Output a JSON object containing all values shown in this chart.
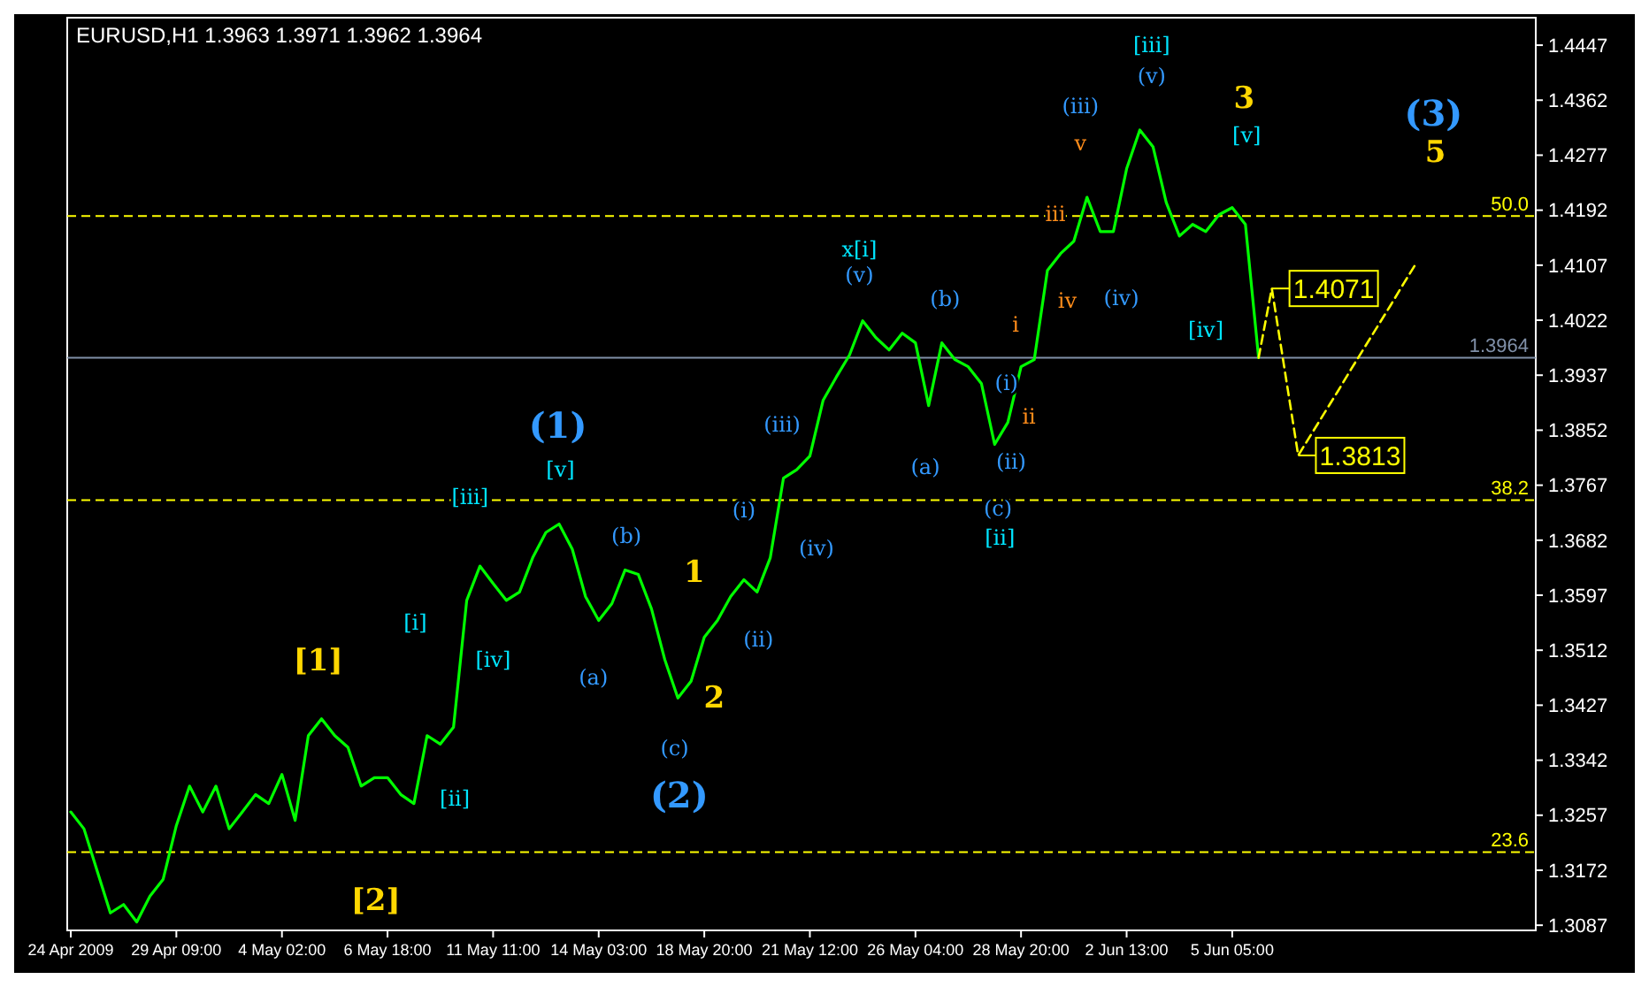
{
  "chart_data": {
    "type": "line",
    "title": "EURUSD,H1  1.3963 1.3971 1.3962 1.3964",
    "categories": [
      "24 Apr 2009",
      null,
      null,
      null,
      null,
      null,
      null,
      null,
      "29 Apr 09:00",
      null,
      null,
      null,
      null,
      null,
      null,
      null,
      "4 May 02:00",
      null,
      null,
      null,
      null,
      null,
      null,
      null,
      "6 May 18:00",
      null,
      null,
      null,
      null,
      null,
      null,
      null,
      "11 May 11:00",
      null,
      null,
      null,
      null,
      null,
      null,
      null,
      "14 May 03:00",
      null,
      null,
      null,
      null,
      null,
      null,
      null,
      "18 May 20:00",
      null,
      null,
      null,
      null,
      null,
      null,
      null,
      "21 May 12:00",
      null,
      null,
      null,
      null,
      null,
      null,
      null,
      "26 May 04:00",
      null,
      null,
      null,
      null,
      null,
      null,
      null,
      "28 May 20:00",
      null,
      null,
      null,
      null,
      null,
      null,
      null,
      "2 Jun 13:00",
      null,
      null,
      null,
      null,
      null,
      null,
      null,
      "5 Jun 05:00",
      null,
      null,
      null,
      null,
      null,
      null,
      null,
      null,
      null,
      null,
      null,
      null,
      null,
      null,
      null,
      null,
      null,
      null,
      null,
      null,
      null,
      null,
      null
    ],
    "series": [
      {
        "color": "#00ff00",
        "values": [
          1.3262,
          1.3236,
          1.3171,
          1.3106,
          1.3119,
          1.3092,
          1.3132,
          1.3158,
          1.3241,
          1.3302,
          1.3262,
          1.3302,
          1.3236,
          1.3262,
          1.3289,
          1.3275,
          1.332,
          1.3249,
          1.338,
          1.3406,
          1.338,
          1.3362,
          1.3302,
          1.3315,
          1.3315,
          1.3289,
          1.3275,
          1.338,
          1.3367,
          1.3393,
          1.3589,
          1.3642,
          1.3615,
          1.3589,
          1.3602,
          1.3655,
          1.3694,
          1.3707,
          1.3668,
          1.3595,
          1.3558,
          1.3584,
          1.3636,
          1.3629,
          1.3576,
          1.3498,
          1.3438,
          1.3464,
          1.3532,
          1.3558,
          1.3595,
          1.3621,
          1.3602,
          1.3655,
          1.3778,
          1.3791,
          1.3812,
          1.3898,
          1.3934,
          1.3968,
          1.4021,
          1.3995,
          1.3976,
          1.4002,
          1.3987,
          1.389,
          1.3987,
          1.3961,
          1.395,
          1.3924,
          1.383,
          1.3864,
          1.395,
          1.3961,
          1.4099,
          1.4125,
          1.4144,
          1.4212,
          1.4159,
          1.4159,
          1.4256,
          1.4316,
          1.429,
          1.4204,
          1.4152,
          1.417,
          1.4159,
          1.4185,
          1.4196,
          1.417,
          1.3964,
          null,
          null,
          null,
          null,
          null,
          null,
          null,
          null,
          null,
          null,
          null,
          null,
          null,
          null,
          null,
          null,
          null,
          null,
          null,
          null,
          null
        ]
      },
      {
        "color": "#ffff00",
        "line_style": "dashed",
        "values": [
          null,
          null,
          null,
          null,
          null,
          null,
          null,
          null,
          null,
          null,
          null,
          null,
          null,
          null,
          null,
          null,
          null,
          null,
          null,
          null,
          null,
          null,
          null,
          null,
          null,
          null,
          null,
          null,
          null,
          null,
          null,
          null,
          null,
          null,
          null,
          null,
          null,
          null,
          null,
          null,
          null,
          null,
          null,
          null,
          null,
          null,
          null,
          null,
          null,
          null,
          null,
          null,
          null,
          null,
          null,
          null,
          null,
          null,
          null,
          null,
          null,
          null,
          null,
          null,
          null,
          null,
          null,
          null,
          null,
          null,
          null,
          null,
          null,
          null,
          null,
          null,
          null,
          null,
          null,
          null,
          null,
          null,
          null,
          null,
          null,
          null,
          null,
          null,
          null,
          null,
          1.3964,
          1.4071,
          1.3942,
          1.3813,
          1.3846,
          1.3879,
          1.3912,
          1.3946,
          1.3979,
          1.4012,
          1.4045,
          1.4079,
          1.4112,
          null,
          null,
          null,
          null,
          null,
          null,
          null,
          null,
          null
        ],
        "value_labels": [
          null,
          null,
          null,
          null,
          null,
          null,
          null,
          null,
          null,
          null,
          null,
          null,
          null,
          null,
          null,
          null,
          null,
          null,
          null,
          null,
          null,
          null,
          null,
          null,
          null,
          null,
          null,
          null,
          null,
          null,
          null,
          null,
          null,
          null,
          null,
          null,
          null,
          null,
          null,
          null,
          null,
          null,
          null,
          null,
          null,
          null,
          null,
          null,
          null,
          null,
          null,
          null,
          null,
          null,
          null,
          null,
          null,
          null,
          null,
          null,
          null,
          null,
          null,
          null,
          null,
          null,
          null,
          null,
          null,
          null,
          null,
          null,
          null,
          null,
          null,
          null,
          null,
          null,
          null,
          null,
          null,
          null,
          null,
          null,
          null,
          null,
          null,
          null,
          null,
          null,
          null,
          "1.4071",
          null,
          "1.3813",
          null,
          null,
          null,
          null,
          null,
          null,
          null,
          null,
          null,
          null,
          null,
          null,
          null,
          null,
          null,
          null,
          null,
          null
        ]
      }
    ],
    "ylim": [
      1.3079,
      1.4484
    ],
    "yticks": [
      1.3087,
      1.3172,
      1.3257,
      1.3342,
      1.3427,
      1.3512,
      1.3597,
      1.3682,
      1.3767,
      1.3852,
      1.3937,
      1.4022,
      1.4107,
      1.4192,
      1.4277,
      1.4362,
      1.4447
    ],
    "ref_lines": [
      {
        "axis": "y",
        "value": 1.4183,
        "color": "#ffff00",
        "line_style": "dashed"
      },
      {
        "axis": "y",
        "value": 1.3744,
        "color": "#ffff00",
        "line_style": "dashed"
      },
      {
        "axis": "y",
        "value": 1.32,
        "color": "#ffff00",
        "line_style": "dashed"
      },
      {
        "axis": "y",
        "value": 1.3964,
        "label": "1.3964",
        "color": "#8090a8",
        "line_style": "solid"
      }
    ],
    "annotations": [
      "(1)",
      "[v]",
      "[iii]",
      "[i]",
      "[iv]",
      "[ii]",
      "[1]",
      "[2]",
      "(a)",
      "(b)",
      "(c)",
      "(2)",
      "1",
      "2",
      "(i)",
      "(ii)",
      "(iii)",
      "(iv)",
      "x[i]",
      "(v)",
      "(a)",
      "(b)",
      "(c)",
      "[ii]",
      "(i)",
      "(ii)",
      "i",
      "ii",
      "iii",
      "iv",
      "v",
      "(iii)",
      "(iv)",
      "[iii]",
      "(v)",
      "3",
      "[v]",
      "[iv]",
      "(3)",
      "5",
      "50.0",
      "38.2",
      "23.6"
    ]
  }
}
